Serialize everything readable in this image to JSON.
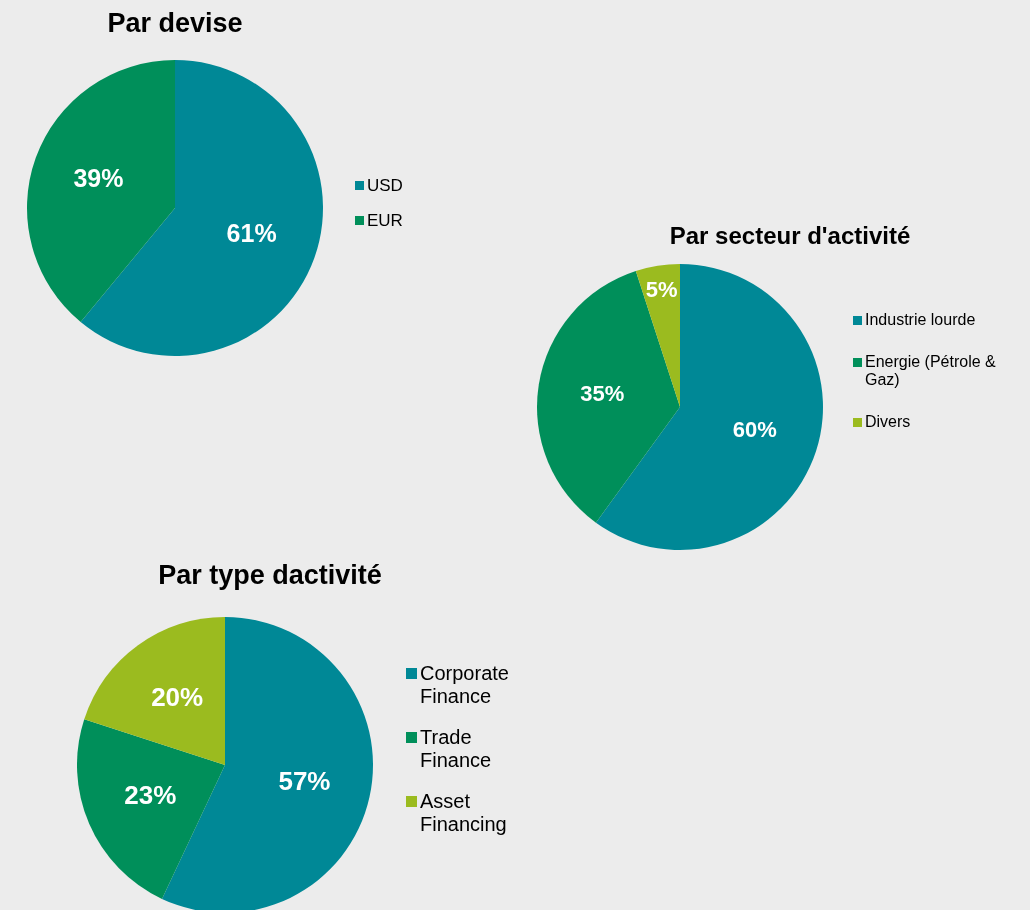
{
  "chart_data": [
    {
      "type": "pie",
      "title": "Par devise",
      "categories": [
        "USD",
        "EUR"
      ],
      "values": [
        61,
        39
      ],
      "colors": [
        "#008896",
        "#008f5a"
      ],
      "value_labels": [
        "61%",
        "39%"
      ],
      "legend": "right"
    },
    {
      "type": "pie",
      "title": "Par secteur d'activité",
      "categories": [
        "Industrie lourde",
        "Energie (Pétrole & Gaz)",
        "Divers"
      ],
      "values": [
        60,
        35,
        5
      ],
      "colors": [
        "#008896",
        "#008f5a",
        "#9bbb1f"
      ],
      "value_labels": [
        "60%",
        "35%",
        "5%"
      ],
      "legend": "right"
    },
    {
      "type": "pie",
      "title": "Par type dactivité",
      "categories": [
        "Corporate Finance",
        "Trade Finance",
        "Asset Financing"
      ],
      "values": [
        57,
        23,
        20
      ],
      "colors": [
        "#008896",
        "#008f5a",
        "#9bbb1f"
      ],
      "value_labels": [
        "57%",
        "23%",
        "20%"
      ],
      "legend": "right"
    }
  ]
}
